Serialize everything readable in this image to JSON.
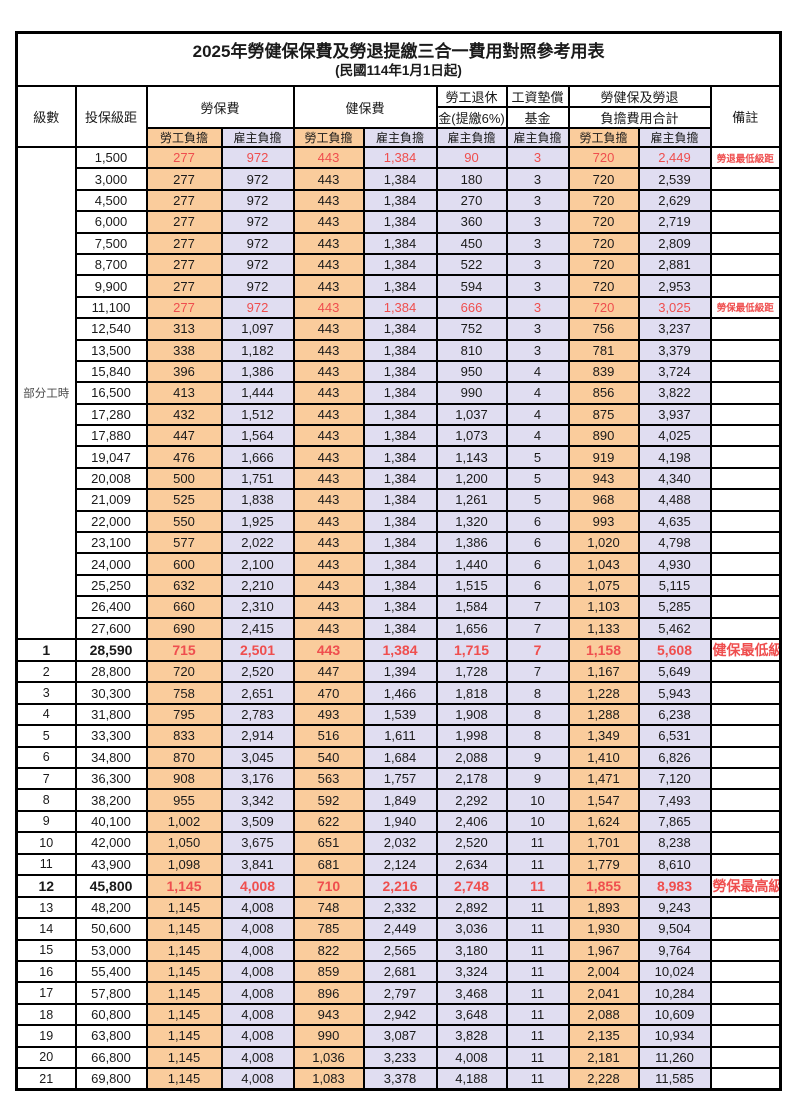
{
  "title": "2025年勞健保保費及勞退提繳三合一費用對照參考用表",
  "subtitle": "(民國114年1月1日起)",
  "colors": {
    "employee_fill": "#FACC9C",
    "employer_fill": "#E0DDF1",
    "highlight_text": "#EF4E4E",
    "border": "#000000"
  },
  "header": {
    "level": "級數",
    "bracket": "投保級距",
    "labor_insurance": "勞保費",
    "health_insurance": "健保費",
    "pension_line1": "勞工退休",
    "pension_line2": "金(提繳6%)",
    "wage_fund_line1": "工資墊償",
    "wage_fund_line2": "基金",
    "total_line1": "勞健保及勞退",
    "total_line2": "負擔費用合計",
    "remark": "備註",
    "employee_burden": "勞工負擔",
    "employer_burden": "雇主負擔"
  },
  "part_time_label": "部分工時",
  "part_time_row_span": 23,
  "rows": [
    {
      "level": "",
      "bracket": "1,500",
      "values": [
        "277",
        "972",
        "443",
        "1,384",
        "90",
        "3",
        "720",
        "2,449"
      ],
      "remark": "勞退最低級距",
      "red": true,
      "bold": false
    },
    {
      "level": "",
      "bracket": "3,000",
      "values": [
        "277",
        "972",
        "443",
        "1,384",
        "180",
        "3",
        "720",
        "2,539"
      ],
      "remark": "",
      "red": false,
      "bold": false
    },
    {
      "level": "",
      "bracket": "4,500",
      "values": [
        "277",
        "972",
        "443",
        "1,384",
        "270",
        "3",
        "720",
        "2,629"
      ],
      "remark": "",
      "red": false,
      "bold": false
    },
    {
      "level": "",
      "bracket": "6,000",
      "values": [
        "277",
        "972",
        "443",
        "1,384",
        "360",
        "3",
        "720",
        "2,719"
      ],
      "remark": "",
      "red": false,
      "bold": false
    },
    {
      "level": "",
      "bracket": "7,500",
      "values": [
        "277",
        "972",
        "443",
        "1,384",
        "450",
        "3",
        "720",
        "2,809"
      ],
      "remark": "",
      "red": false,
      "bold": false
    },
    {
      "level": "",
      "bracket": "8,700",
      "values": [
        "277",
        "972",
        "443",
        "1,384",
        "522",
        "3",
        "720",
        "2,881"
      ],
      "remark": "",
      "red": false,
      "bold": false
    },
    {
      "level": "",
      "bracket": "9,900",
      "values": [
        "277",
        "972",
        "443",
        "1,384",
        "594",
        "3",
        "720",
        "2,953"
      ],
      "remark": "",
      "red": false,
      "bold": false
    },
    {
      "level": "",
      "bracket": "11,100",
      "values": [
        "277",
        "972",
        "443",
        "1,384",
        "666",
        "3",
        "720",
        "3,025"
      ],
      "remark": "勞保最低級距",
      "red": true,
      "bold": false
    },
    {
      "level": "",
      "bracket": "12,540",
      "values": [
        "313",
        "1,097",
        "443",
        "1,384",
        "752",
        "3",
        "756",
        "3,237"
      ],
      "remark": "",
      "red": false,
      "bold": false
    },
    {
      "level": "",
      "bracket": "13,500",
      "values": [
        "338",
        "1,182",
        "443",
        "1,384",
        "810",
        "3",
        "781",
        "3,379"
      ],
      "remark": "",
      "red": false,
      "bold": false
    },
    {
      "level": "",
      "bracket": "15,840",
      "values": [
        "396",
        "1,386",
        "443",
        "1,384",
        "950",
        "4",
        "839",
        "3,724"
      ],
      "remark": "",
      "red": false,
      "bold": false
    },
    {
      "level": "",
      "bracket": "16,500",
      "values": [
        "413",
        "1,444",
        "443",
        "1,384",
        "990",
        "4",
        "856",
        "3,822"
      ],
      "remark": "",
      "red": false,
      "bold": false
    },
    {
      "level": "",
      "bracket": "17,280",
      "values": [
        "432",
        "1,512",
        "443",
        "1,384",
        "1,037",
        "4",
        "875",
        "3,937"
      ],
      "remark": "",
      "red": false,
      "bold": false
    },
    {
      "level": "",
      "bracket": "17,880",
      "values": [
        "447",
        "1,564",
        "443",
        "1,384",
        "1,073",
        "4",
        "890",
        "4,025"
      ],
      "remark": "",
      "red": false,
      "bold": false
    },
    {
      "level": "",
      "bracket": "19,047",
      "values": [
        "476",
        "1,666",
        "443",
        "1,384",
        "1,143",
        "5",
        "919",
        "4,198"
      ],
      "remark": "",
      "red": false,
      "bold": false
    },
    {
      "level": "",
      "bracket": "20,008",
      "values": [
        "500",
        "1,751",
        "443",
        "1,384",
        "1,200",
        "5",
        "943",
        "4,340"
      ],
      "remark": "",
      "red": false,
      "bold": false
    },
    {
      "level": "",
      "bracket": "21,009",
      "values": [
        "525",
        "1,838",
        "443",
        "1,384",
        "1,261",
        "5",
        "968",
        "4,488"
      ],
      "remark": "",
      "red": false,
      "bold": false
    },
    {
      "level": "",
      "bracket": "22,000",
      "values": [
        "550",
        "1,925",
        "443",
        "1,384",
        "1,320",
        "6",
        "993",
        "4,635"
      ],
      "remark": "",
      "red": false,
      "bold": false
    },
    {
      "level": "",
      "bracket": "23,100",
      "values": [
        "577",
        "2,022",
        "443",
        "1,384",
        "1,386",
        "6",
        "1,020",
        "4,798"
      ],
      "remark": "",
      "red": false,
      "bold": false
    },
    {
      "level": "",
      "bracket": "24,000",
      "values": [
        "600",
        "2,100",
        "443",
        "1,384",
        "1,440",
        "6",
        "1,043",
        "4,930"
      ],
      "remark": "",
      "red": false,
      "bold": false
    },
    {
      "level": "",
      "bracket": "25,250",
      "values": [
        "632",
        "2,210",
        "443",
        "1,384",
        "1,515",
        "6",
        "1,075",
        "5,115"
      ],
      "remark": "",
      "red": false,
      "bold": false
    },
    {
      "level": "",
      "bracket": "26,400",
      "values": [
        "660",
        "2,310",
        "443",
        "1,384",
        "1,584",
        "7",
        "1,103",
        "5,285"
      ],
      "remark": "",
      "red": false,
      "bold": false
    },
    {
      "level": "",
      "bracket": "27,600",
      "values": [
        "690",
        "2,415",
        "443",
        "1,384",
        "1,656",
        "7",
        "1,133",
        "5,462"
      ],
      "remark": "",
      "red": false,
      "bold": false
    },
    {
      "level": "1",
      "bracket": "28,590",
      "values": [
        "715",
        "2,501",
        "443",
        "1,384",
        "1,715",
        "7",
        "1,158",
        "5,608"
      ],
      "remark": "健保最低級距",
      "red": true,
      "bold": true
    },
    {
      "level": "2",
      "bracket": "28,800",
      "values": [
        "720",
        "2,520",
        "447",
        "1,394",
        "1,728",
        "7",
        "1,167",
        "5,649"
      ],
      "remark": "",
      "red": false,
      "bold": false
    },
    {
      "level": "3",
      "bracket": "30,300",
      "values": [
        "758",
        "2,651",
        "470",
        "1,466",
        "1,818",
        "8",
        "1,228",
        "5,943"
      ],
      "remark": "",
      "red": false,
      "bold": false
    },
    {
      "level": "4",
      "bracket": "31,800",
      "values": [
        "795",
        "2,783",
        "493",
        "1,539",
        "1,908",
        "8",
        "1,288",
        "6,238"
      ],
      "remark": "",
      "red": false,
      "bold": false
    },
    {
      "level": "5",
      "bracket": "33,300",
      "values": [
        "833",
        "2,914",
        "516",
        "1,611",
        "1,998",
        "8",
        "1,349",
        "6,531"
      ],
      "remark": "",
      "red": false,
      "bold": false
    },
    {
      "level": "6",
      "bracket": "34,800",
      "values": [
        "870",
        "3,045",
        "540",
        "1,684",
        "2,088",
        "9",
        "1,410",
        "6,826"
      ],
      "remark": "",
      "red": false,
      "bold": false
    },
    {
      "level": "7",
      "bracket": "36,300",
      "values": [
        "908",
        "3,176",
        "563",
        "1,757",
        "2,178",
        "9",
        "1,471",
        "7,120"
      ],
      "remark": "",
      "red": false,
      "bold": false
    },
    {
      "level": "8",
      "bracket": "38,200",
      "values": [
        "955",
        "3,342",
        "592",
        "1,849",
        "2,292",
        "10",
        "1,547",
        "7,493"
      ],
      "remark": "",
      "red": false,
      "bold": false
    },
    {
      "level": "9",
      "bracket": "40,100",
      "values": [
        "1,002",
        "3,509",
        "622",
        "1,940",
        "2,406",
        "10",
        "1,624",
        "7,865"
      ],
      "remark": "",
      "red": false,
      "bold": false
    },
    {
      "level": "10",
      "bracket": "42,000",
      "values": [
        "1,050",
        "3,675",
        "651",
        "2,032",
        "2,520",
        "11",
        "1,701",
        "8,238"
      ],
      "remark": "",
      "red": false,
      "bold": false
    },
    {
      "level": "11",
      "bracket": "43,900",
      "values": [
        "1,098",
        "3,841",
        "681",
        "2,124",
        "2,634",
        "11",
        "1,779",
        "8,610"
      ],
      "remark": "",
      "red": false,
      "bold": false
    },
    {
      "level": "12",
      "bracket": "45,800",
      "values": [
        "1,145",
        "4,008",
        "710",
        "2,216",
        "2,748",
        "11",
        "1,855",
        "8,983"
      ],
      "remark": "勞保最高級距",
      "red": true,
      "bold": true
    },
    {
      "level": "13",
      "bracket": "48,200",
      "values": [
        "1,145",
        "4,008",
        "748",
        "2,332",
        "2,892",
        "11",
        "1,893",
        "9,243"
      ],
      "remark": "",
      "red": false,
      "bold": false
    },
    {
      "level": "14",
      "bracket": "50,600",
      "values": [
        "1,145",
        "4,008",
        "785",
        "2,449",
        "3,036",
        "11",
        "1,930",
        "9,504"
      ],
      "remark": "",
      "red": false,
      "bold": false
    },
    {
      "level": "15",
      "bracket": "53,000",
      "values": [
        "1,145",
        "4,008",
        "822",
        "2,565",
        "3,180",
        "11",
        "1,967",
        "9,764"
      ],
      "remark": "",
      "red": false,
      "bold": false
    },
    {
      "level": "16",
      "bracket": "55,400",
      "values": [
        "1,145",
        "4,008",
        "859",
        "2,681",
        "3,324",
        "11",
        "2,004",
        "10,024"
      ],
      "remark": "",
      "red": false,
      "bold": false
    },
    {
      "level": "17",
      "bracket": "57,800",
      "values": [
        "1,145",
        "4,008",
        "896",
        "2,797",
        "3,468",
        "11",
        "2,041",
        "10,284"
      ],
      "remark": "",
      "red": false,
      "bold": false
    },
    {
      "level": "18",
      "bracket": "60,800",
      "values": [
        "1,145",
        "4,008",
        "943",
        "2,942",
        "3,648",
        "11",
        "2,088",
        "10,609"
      ],
      "remark": "",
      "red": false,
      "bold": false
    },
    {
      "level": "19",
      "bracket": "63,800",
      "values": [
        "1,145",
        "4,008",
        "990",
        "3,087",
        "3,828",
        "11",
        "2,135",
        "10,934"
      ],
      "remark": "",
      "red": false,
      "bold": false
    },
    {
      "level": "20",
      "bracket": "66,800",
      "values": [
        "1,145",
        "4,008",
        "1,036",
        "3,233",
        "4,008",
        "11",
        "2,181",
        "11,260"
      ],
      "remark": "",
      "red": false,
      "bold": false
    },
    {
      "level": "21",
      "bracket": "69,800",
      "values": [
        "1,145",
        "4,008",
        "1,083",
        "3,378",
        "4,188",
        "11",
        "2,228",
        "11,585"
      ],
      "remark": "",
      "red": false,
      "bold": false
    }
  ]
}
